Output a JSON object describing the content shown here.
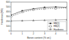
{
  "chart_data": {
    "type": "line",
    "x_label": "Boron content (% wt.)",
    "y_label": "Hardness (HB)",
    "x": [
      0,
      1,
      2,
      3,
      4,
      5
    ],
    "xlim": [
      0,
      5
    ],
    "xticks": [
      0,
      1,
      2,
      3,
      4,
      5
    ],
    "ylim": [
      0,
      600
    ],
    "yticks": [
      0,
      100,
      200,
      300,
      400,
      500,
      600
    ],
    "legend": "lower right",
    "series": [
      {
        "name": "HB(1)",
        "color": "#333333",
        "marker": "circle",
        "line_style": "solid",
        "values": [
          330,
          420,
          460,
          490,
          500,
          490
        ]
      },
      {
        "name": "HB(2)",
        "color": "#555555",
        "marker": "square",
        "line_style": "dashed",
        "values": [
          300,
          390,
          440,
          460,
          470,
          480
        ]
      },
      {
        "name": "Hardness",
        "color": "#777777",
        "marker": "triangle",
        "line_style": "solid",
        "values": [
          210,
          215,
          220,
          225,
          230,
          235
        ]
      }
    ]
  }
}
